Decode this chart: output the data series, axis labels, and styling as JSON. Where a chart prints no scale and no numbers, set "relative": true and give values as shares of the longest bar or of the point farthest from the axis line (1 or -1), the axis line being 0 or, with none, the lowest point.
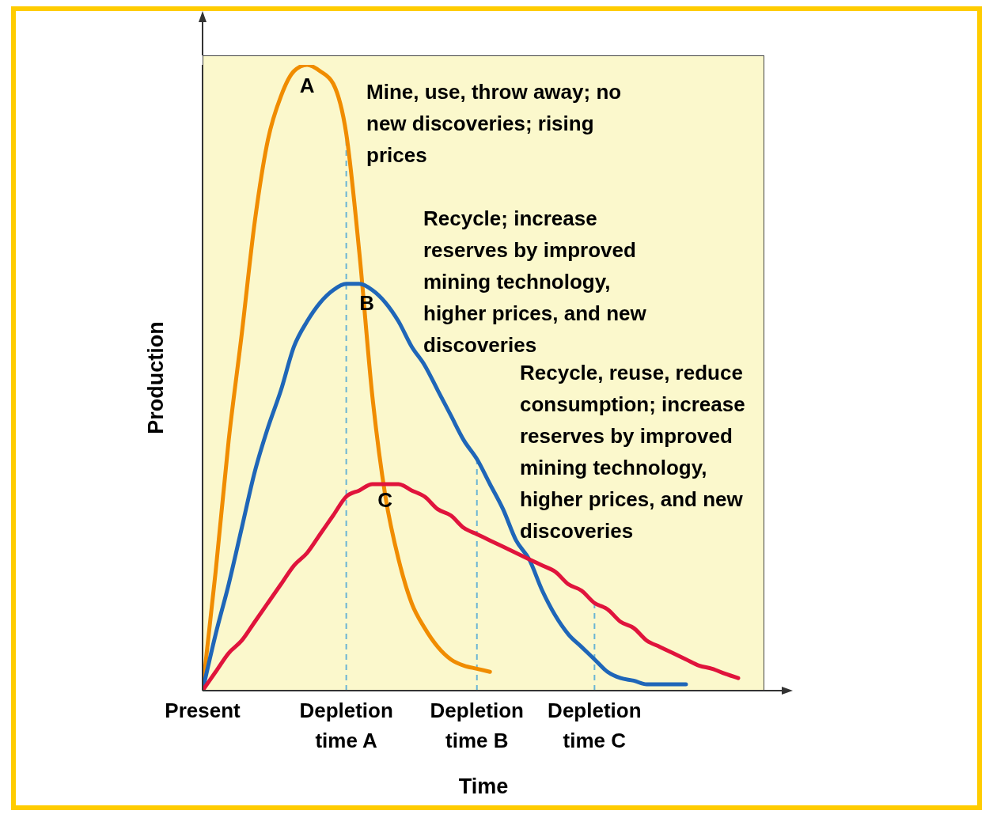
{
  "chart_data": {
    "type": "line",
    "relative": true,
    "xlabel": "Time",
    "ylabel": "Production",
    "categories": [
      "Present",
      null,
      null,
      null,
      null,
      null,
      null,
      null,
      null,
      null,
      null,
      "Depletion time A",
      null,
      null,
      null,
      null,
      null,
      null,
      null,
      null,
      null,
      "Depletion time B",
      null,
      null,
      null,
      null,
      null,
      null,
      null,
      null,
      "Depletion time C",
      null,
      null,
      null,
      null,
      null,
      null,
      null,
      null,
      null,
      null,
      null,
      null,
      null
    ],
    "series": [
      {
        "name": "A",
        "color": "#f08c00",
        "values": [
          0,
          0.19,
          0.4,
          0.57,
          0.75,
          0.88,
          0.95,
          0.99,
          1,
          0.99,
          0.97,
          0.89,
          0.7,
          0.47,
          0.31,
          0.21,
          0.14,
          0.1,
          0.07,
          0.05,
          0.04,
          0.035,
          0.03,
          null,
          null,
          null,
          null,
          null,
          null,
          null,
          null,
          null,
          null,
          null,
          null,
          null,
          null,
          null,
          null,
          null,
          null,
          null,
          null,
          null
        ]
      },
      {
        "name": "B",
        "color": "#1f66b8",
        "values": [
          0,
          0.09,
          0.17,
          0.26,
          0.35,
          0.42,
          0.48,
          0.55,
          0.59,
          0.62,
          0.64,
          0.65,
          0.65,
          0.64,
          0.62,
          0.59,
          0.55,
          0.52,
          0.48,
          0.44,
          0.4,
          0.37,
          0.33,
          0.29,
          0.24,
          0.21,
          0.16,
          0.12,
          0.09,
          0.07,
          0.05,
          0.03,
          0.02,
          0.016,
          0.01,
          0.01,
          0.01,
          0.01,
          null,
          null,
          null,
          null,
          null,
          null
        ]
      },
      {
        "name": "C",
        "color": "#e0143c",
        "values": [
          0,
          0.03,
          0.06,
          0.08,
          0.11,
          0.14,
          0.17,
          0.2,
          0.22,
          0.25,
          0.28,
          0.31,
          0.32,
          0.33,
          0.33,
          0.33,
          0.32,
          0.31,
          0.29,
          0.28,
          0.26,
          0.25,
          0.24,
          0.23,
          0.22,
          0.21,
          0.2,
          0.19,
          0.17,
          0.16,
          0.14,
          0.13,
          0.11,
          0.1,
          0.08,
          0.07,
          0.06,
          0.05,
          0.04,
          0.035,
          0.027,
          0.02,
          null,
          null
        ]
      }
    ],
    "ref_lines": [
      {
        "axis": "x",
        "value": "Depletion time A",
        "color": "#6ab4d4",
        "line_style": "dashed"
      },
      {
        "axis": "x",
        "value": "Depletion time B",
        "color": "#6ab4d4",
        "line_style": "dashed"
      },
      {
        "axis": "x",
        "value": "Depletion time C",
        "color": "#6ab4d4",
        "line_style": "dashed"
      }
    ],
    "annotations": [
      "Mine, use, throw away; no new discoveries; rising prices",
      "Recycle; increase reserves by improved mining technology, higher prices, and new discoveries",
      "Recycle, reuse, reduce consumption; increase reserves by improved mining technology, higher prices, and new discoveries"
    ]
  }
}
